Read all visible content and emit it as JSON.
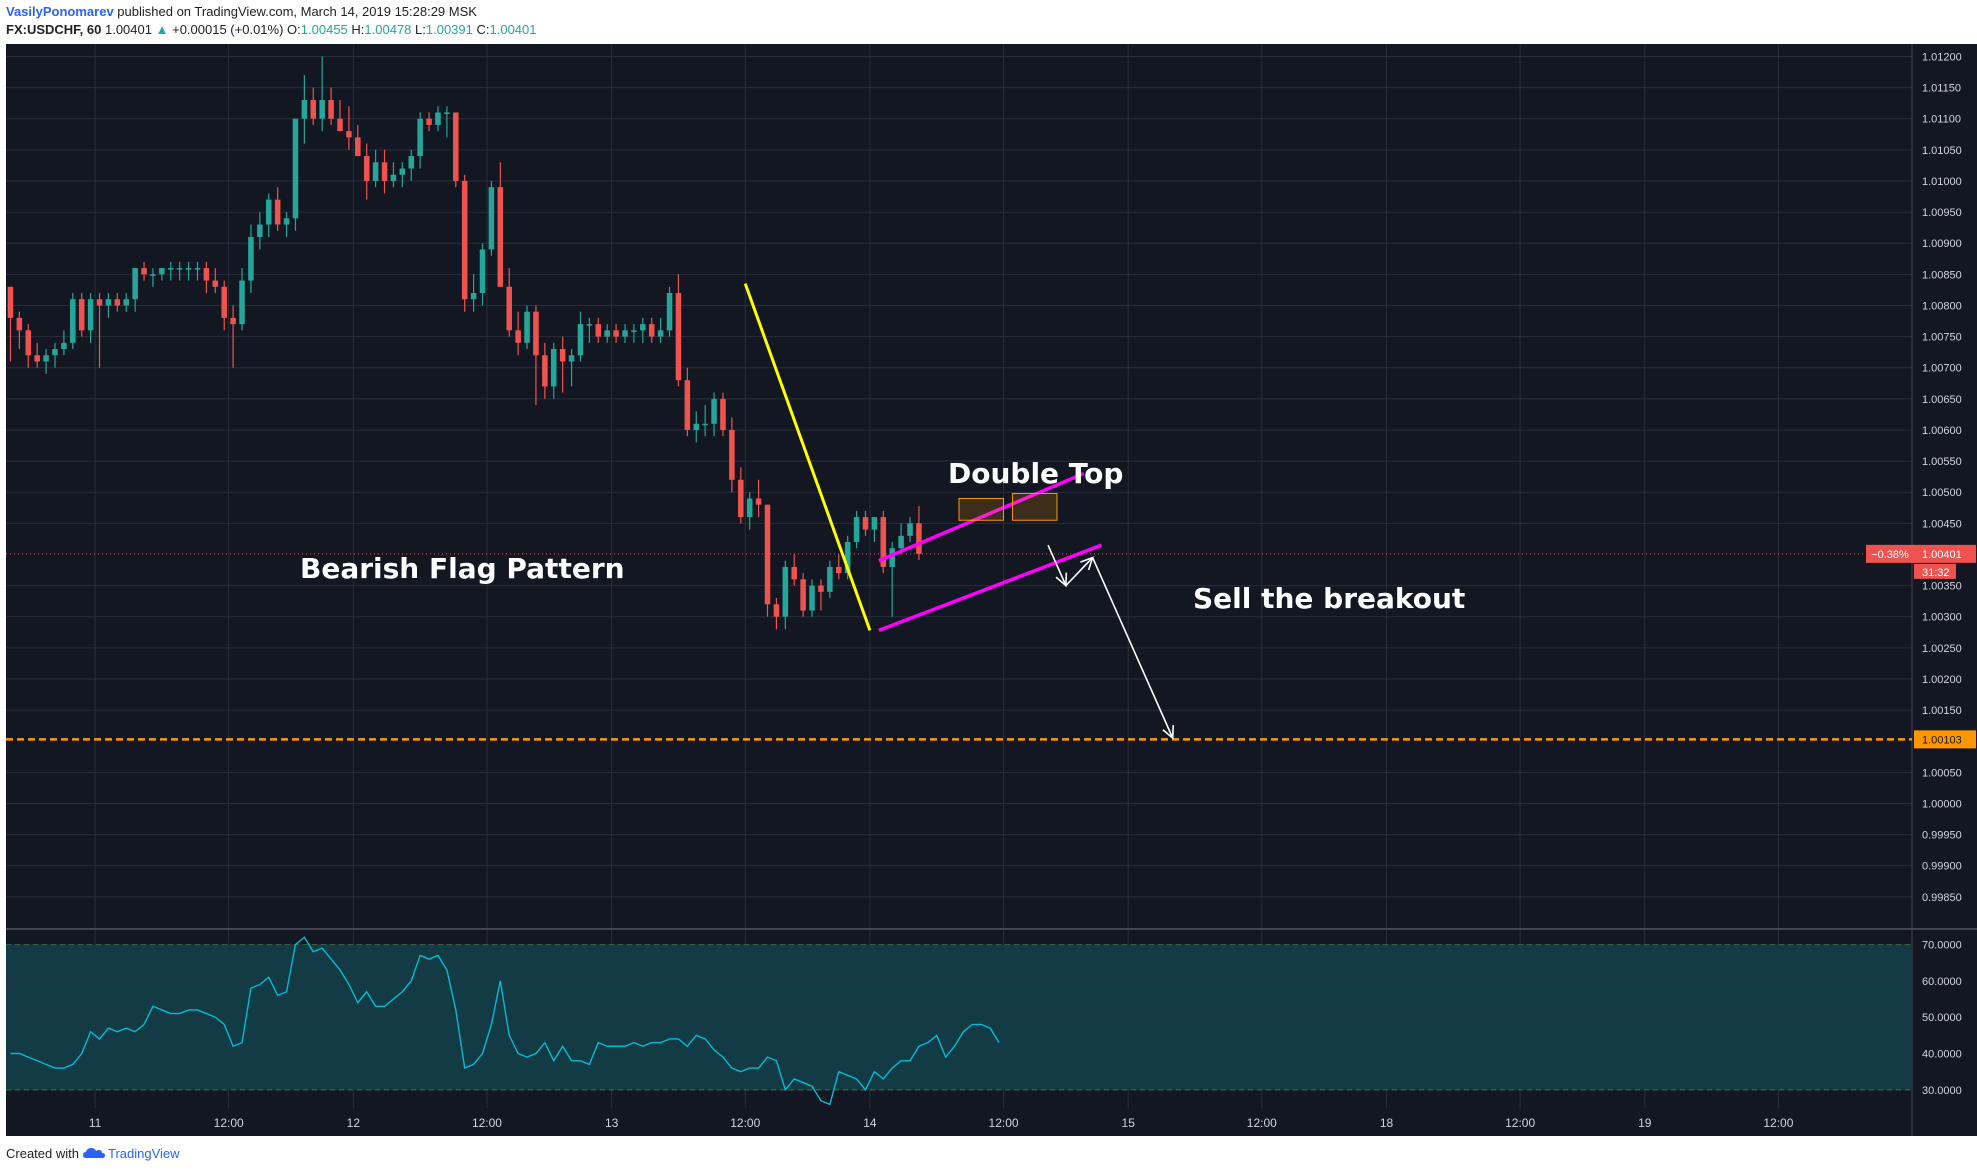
{
  "header": {
    "author": "VasilyPonomarev",
    "published_text": "published on TradingView.com, March 14, 2019 15:28:29 MSK",
    "symbol": "FX:USDCHF, 60",
    "last": "1.00401",
    "change_arrow": "▲",
    "change": "+0.00015 (+0.01%)",
    "open_label": "O:",
    "open": "1.00455",
    "high_label": "H:",
    "high": "1.00478",
    "low_label": "L:",
    "low": "1.00391",
    "close_label": "C:",
    "close": "1.00401"
  },
  "footer": {
    "created_with": "Created with",
    "brand": "TradingView",
    "logo_icon": "tradingview-cloud-icon"
  },
  "colors": {
    "background": "#131722",
    "grid": "#2a2e39",
    "up": "#26a69a",
    "down": "#ef5350",
    "downtrend": "#ffff00",
    "channel": "#ff00ff",
    "target": "#ff9800",
    "rsi": "#00bcd4",
    "rsi_band": "#133b45"
  },
  "chart_data": [
    {
      "type": "candlestick",
      "symbol": "USDCHF",
      "interval": "60",
      "ylim": [
        0.998,
        1.0122
      ],
      "x_range": [
        0,
        214
      ],
      "y_ticks": [
        "1.01200",
        "1.01150",
        "1.01100",
        "1.01050",
        "1.01000",
        "1.00950",
        "1.00900",
        "1.00850",
        "1.00800",
        "1.00750",
        "1.00700",
        "1.00650",
        "1.00600",
        "1.00550",
        "1.00500",
        "1.00450",
        "1.00350",
        "1.00300",
        "1.00250",
        "1.00200",
        "1.00150",
        "1.00050",
        "1.00000",
        "0.99950",
        "0.99900",
        "0.99850"
      ],
      "x_ticks": [
        {
          "x": 10,
          "label": "11"
        },
        {
          "x": 25,
          "label": "12:00"
        },
        {
          "x": 39,
          "label": "12"
        },
        {
          "x": 54,
          "label": "12:00"
        },
        {
          "x": 68,
          "label": "13"
        },
        {
          "x": 83,
          "label": "12:00"
        },
        {
          "x": 97,
          "label": "14"
        },
        {
          "x": 112,
          "label": "12:00"
        },
        {
          "x": 126,
          "label": "15"
        },
        {
          "x": 141,
          "label": "12:00"
        },
        {
          "x": 155,
          "label": "18"
        },
        {
          "x": 170,
          "label": "12:00"
        },
        {
          "x": 184,
          "label": "19"
        },
        {
          "x": 199,
          "label": "12:00"
        }
      ],
      "candles": [
        [
          1.0083,
          1.0083,
          1.0071,
          1.0078
        ],
        [
          1.0078,
          1.0079,
          1.0073,
          1.0076
        ],
        [
          1.0076,
          1.0077,
          1.007,
          1.0072
        ],
        [
          1.0072,
          1.0074,
          1.007,
          1.0071
        ],
        [
          1.0071,
          1.0073,
          1.0069,
          1.0072
        ],
        [
          1.0072,
          1.0074,
          1.007,
          1.0073
        ],
        [
          1.0073,
          1.0076,
          1.0072,
          1.0074
        ],
        [
          1.0074,
          1.0082,
          1.0073,
          1.0081
        ],
        [
          1.0081,
          1.0082,
          1.0075,
          1.0076
        ],
        [
          1.0076,
          1.0082,
          1.0074,
          1.0081
        ],
        [
          1.0081,
          1.0082,
          1.007,
          1.008
        ],
        [
          1.008,
          1.0082,
          1.0078,
          1.0081
        ],
        [
          1.0081,
          1.0082,
          1.0079,
          1.008
        ],
        [
          1.008,
          1.0082,
          1.0079,
          1.0081
        ],
        [
          1.0081,
          1.0086,
          1.0079,
          1.0086
        ],
        [
          1.0086,
          1.0087,
          1.0084,
          1.0085
        ],
        [
          1.0085,
          1.0086,
          1.0083,
          1.0085
        ],
        [
          1.0085,
          1.0086,
          1.0084,
          1.0086
        ],
        [
          1.0086,
          1.0087,
          1.0084,
          1.0086
        ],
        [
          1.0086,
          1.0087,
          1.0084,
          1.0086
        ],
        [
          1.0086,
          1.0087,
          1.0084,
          1.0086
        ],
        [
          1.0086,
          1.0087,
          1.0084,
          1.0086
        ],
        [
          1.0086,
          1.0087,
          1.0082,
          1.0084
        ],
        [
          1.0084,
          1.0086,
          1.0082,
          1.0083
        ],
        [
          1.0083,
          1.0084,
          1.0076,
          1.0078
        ],
        [
          1.0078,
          1.008,
          1.007,
          1.0077
        ],
        [
          1.0077,
          1.0086,
          1.0076,
          1.0084
        ],
        [
          1.0084,
          1.0093,
          1.0082,
          1.0091
        ],
        [
          1.0091,
          1.0095,
          1.0089,
          1.0093
        ],
        [
          1.0093,
          1.0098,
          1.0091,
          1.0097
        ],
        [
          1.0097,
          1.0099,
          1.0092,
          1.0093
        ],
        [
          1.0093,
          1.0095,
          1.0091,
          1.0094
        ],
        [
          1.0094,
          1.011,
          1.0092,
          1.011
        ],
        [
          1.011,
          1.0117,
          1.0106,
          1.0113
        ],
        [
          1.0113,
          1.0115,
          1.0109,
          1.011
        ],
        [
          1.011,
          1.012,
          1.0108,
          1.0113
        ],
        [
          1.0113,
          1.0115,
          1.0109,
          1.011
        ],
        [
          1.011,
          1.0113,
          1.0108,
          1.0108
        ],
        [
          1.0108,
          1.0112,
          1.0105,
          1.0107
        ],
        [
          1.0107,
          1.0109,
          1.0104,
          1.0104
        ],
        [
          1.0104,
          1.0106,
          1.0097,
          1.01
        ],
        [
          1.01,
          1.0105,
          1.0099,
          1.0103
        ],
        [
          1.0103,
          1.0105,
          1.0098,
          1.01
        ],
        [
          1.01,
          1.0103,
          1.0099,
          1.0101
        ],
        [
          1.0101,
          1.0103,
          1.0099,
          1.0102
        ],
        [
          1.0102,
          1.0105,
          1.01,
          1.0104
        ],
        [
          1.0104,
          1.0111,
          1.0102,
          1.011
        ],
        [
          1.011,
          1.0111,
          1.0108,
          1.0109
        ],
        [
          1.0109,
          1.0112,
          1.0108,
          1.0111
        ],
        [
          1.0111,
          1.0112,
          1.0107,
          1.0111
        ],
        [
          1.0111,
          1.0111,
          1.0099,
          1.01
        ],
        [
          1.01,
          1.0101,
          1.0079,
          1.0081
        ],
        [
          1.0081,
          1.0085,
          1.0079,
          1.0082
        ],
        [
          1.0082,
          1.009,
          1.008,
          1.0089
        ],
        [
          1.0089,
          1.01,
          1.0088,
          1.0099
        ],
        [
          1.0099,
          1.0103,
          1.0084,
          1.0083
        ],
        [
          1.0083,
          1.0086,
          1.0075,
          1.0076
        ],
        [
          1.0076,
          1.0079,
          1.0072,
          1.0074
        ],
        [
          1.0074,
          1.008,
          1.0073,
          1.0079
        ],
        [
          1.0079,
          1.008,
          1.0064,
          1.0072
        ],
        [
          1.0072,
          1.0074,
          1.0065,
          1.0067
        ],
        [
          1.0067,
          1.0074,
          1.0065,
          1.0073
        ],
        [
          1.0073,
          1.0075,
          1.0066,
          1.0071
        ],
        [
          1.0071,
          1.0073,
          1.0067,
          1.0072
        ],
        [
          1.0072,
          1.0079,
          1.0071,
          1.0077
        ],
        [
          1.0077,
          1.0078,
          1.0074,
          1.0077
        ],
        [
          1.0077,
          1.0078,
          1.0074,
          1.0075
        ],
        [
          1.0075,
          1.0077,
          1.0074,
          1.0076
        ],
        [
          1.0076,
          1.0077,
          1.0074,
          1.0075
        ],
        [
          1.0075,
          1.0077,
          1.0074,
          1.0076
        ],
        [
          1.0076,
          1.0077,
          1.0074,
          1.0076
        ],
        [
          1.0076,
          1.0078,
          1.0074,
          1.0077
        ],
        [
          1.0077,
          1.0078,
          1.0074,
          1.0075
        ],
        [
          1.0075,
          1.0078,
          1.0074,
          1.0076
        ],
        [
          1.0076,
          1.0083,
          1.0075,
          1.0082
        ],
        [
          1.0082,
          1.0085,
          1.0067,
          1.0068
        ],
        [
          1.0068,
          1.007,
          1.0059,
          1.006
        ],
        [
          1.006,
          1.0063,
          1.0058,
          1.0061
        ],
        [
          1.0061,
          1.0064,
          1.0059,
          1.0061
        ],
        [
          1.0061,
          1.0066,
          1.0059,
          1.0065
        ],
        [
          1.0065,
          1.0066,
          1.0059,
          1.006
        ],
        [
          1.006,
          1.0062,
          1.005,
          1.0052
        ],
        [
          1.0052,
          1.0054,
          1.0045,
          1.0046
        ],
        [
          1.0046,
          1.005,
          1.0044,
          1.0049
        ],
        [
          1.0049,
          1.0052,
          1.0046,
          1.0048
        ],
        [
          1.0048,
          1.0048,
          1.003,
          1.0032
        ],
        [
          1.0032,
          1.0033,
          1.0028,
          1.003
        ],
        [
          1.003,
          1.0039,
          1.0028,
          1.0038
        ],
        [
          1.0038,
          1.004,
          1.0035,
          1.0036
        ],
        [
          1.0036,
          1.0037,
          1.003,
          1.0031
        ],
        [
          1.0031,
          1.0036,
          1.003,
          1.0035
        ],
        [
          1.0035,
          1.0036,
          1.0031,
          1.0034
        ],
        [
          1.0034,
          1.0039,
          1.0033,
          1.0038
        ],
        [
          1.0038,
          1.004,
          1.0036,
          1.0037
        ],
        [
          1.0037,
          1.0043,
          1.0036,
          1.0042
        ],
        [
          1.0042,
          1.0047,
          1.0041,
          1.0046
        ],
        [
          1.0046,
          1.0047,
          1.0043,
          1.0044
        ],
        [
          1.0044,
          1.0046,
          1.0042,
          1.0046
        ],
        [
          1.0046,
          1.0047,
          1.0037,
          1.0038
        ],
        [
          1.0038,
          1.0042,
          1.003,
          1.0041
        ],
        [
          1.0041,
          1.0045,
          1.004,
          1.0043
        ],
        [
          1.0043,
          1.0046,
          1.0042,
          1.0045
        ],
        [
          1.0045,
          1.00478,
          1.00391,
          1.00401
        ]
      ],
      "annotations": {
        "title_left": "Bearish Flag Pattern",
        "double_top": "Double Top",
        "sell_text": "Sell the breakout",
        "downtrend_line": {
          "from": [
            83,
            1.00835
          ],
          "to": [
            97,
            1.00278
          ]
        },
        "channel_upper": {
          "from": [
            98,
            1.0039
          ],
          "to": [
            121,
            1.0053
          ]
        },
        "channel_lower": {
          "from": [
            98,
            1.00278
          ],
          "to": [
            123,
            1.00415
          ]
        },
        "double_top_boxes": [
          {
            "x": [
              107,
              112
            ],
            "y": [
              1.00455,
              1.0049
            ]
          },
          {
            "x": [
              113,
              118
            ],
            "y": [
              1.00455,
              1.00498
            ]
          }
        ],
        "arrow_small": [
          [
            117,
            1.00415
          ],
          [
            119,
            1.0035
          ],
          [
            122,
            1.00395
          ]
        ],
        "arrow_long": [
          [
            122,
            1.00395
          ],
          [
            131,
            1.00105
          ]
        ],
        "target_level": 1.00103,
        "target_label": "1.00103",
        "current_level": 1.00401,
        "current_pct_label": "−0.38%",
        "current_price_label": "1.00401",
        "countdown_label": "31:32"
      }
    },
    {
      "type": "line",
      "name": "RSI",
      "ylim": [
        25,
        74
      ],
      "x_range": [
        0,
        214
      ],
      "y_ticks": [
        "70.0000",
        "60.0000",
        "50.0000",
        "40.0000",
        "30.0000"
      ],
      "bands": [
        30,
        70
      ],
      "values": [
        40,
        40,
        39,
        38,
        37,
        36,
        36,
        37,
        40,
        46,
        44,
        47,
        46,
        47,
        46,
        48,
        53,
        52,
        51,
        51,
        52,
        52,
        51,
        50,
        48,
        42,
        43,
        58,
        59,
        61,
        56,
        57,
        70,
        72,
        68,
        69,
        66,
        63,
        59,
        54,
        57,
        53,
        53,
        55,
        57,
        60,
        67,
        66,
        67,
        63,
        52,
        36,
        37,
        40,
        48,
        60,
        45,
        40,
        39,
        40,
        43,
        38,
        42,
        38,
        38,
        37,
        43,
        42,
        42,
        42,
        43,
        42,
        43,
        43,
        44,
        44,
        42,
        45,
        44,
        41,
        39,
        36,
        35,
        36,
        36,
        39,
        38,
        30,
        33,
        32,
        31,
        27,
        26,
        35,
        34,
        33,
        30,
        35,
        33,
        36,
        38,
        38,
        42,
        43,
        45,
        39,
        42,
        46,
        48,
        48,
        47,
        43
      ]
    }
  ]
}
